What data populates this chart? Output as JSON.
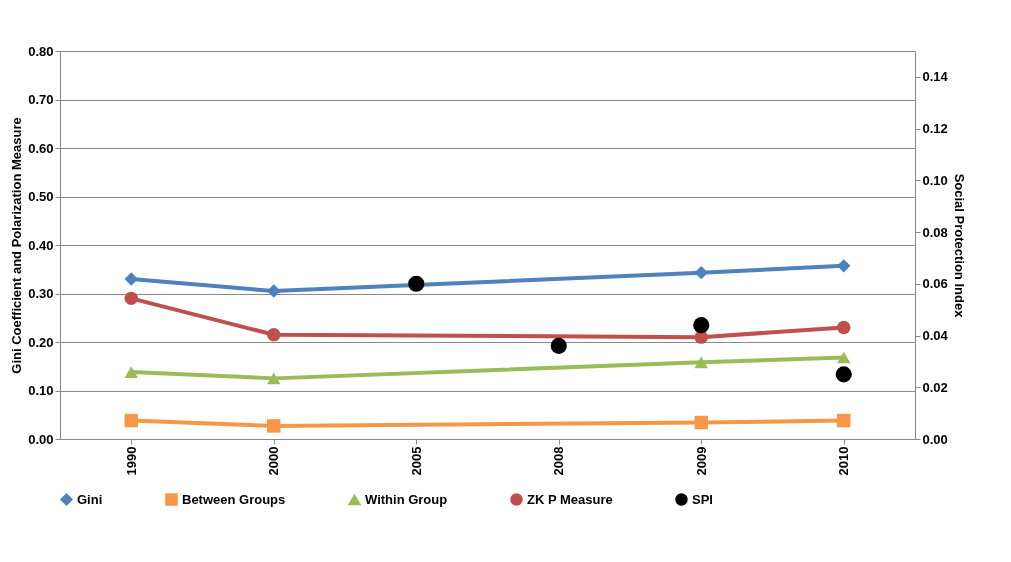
{
  "chart_data": {
    "type": "line",
    "categories": [
      "1990",
      "2000",
      "2005",
      "2008",
      "2009",
      "2010"
    ],
    "ylabel": "Gini Coefficient and Polarization Measure",
    "y2label": "Social Protection Index",
    "ylim": [
      0,
      0.8
    ],
    "yticks": [
      {
        "value": 0,
        "label": "0.00"
      },
      {
        "value": 0.1,
        "label": "0.10"
      },
      {
        "value": 0.2,
        "label": "0.20"
      },
      {
        "value": 0.3,
        "label": "0.30"
      },
      {
        "value": 0.4,
        "label": "0.40"
      },
      {
        "value": 0.5,
        "label": "0.50"
      },
      {
        "value": 0.6,
        "label": "0.60"
      },
      {
        "value": 0.7,
        "label": "0.70"
      },
      {
        "value": 0.8,
        "label": "0.80"
      }
    ],
    "y2lim": [
      0,
      0.15
    ],
    "y2ticks": [
      {
        "value": 0,
        "label": "0.00"
      },
      {
        "value": 0.02,
        "label": "0.02"
      },
      {
        "value": 0.04,
        "label": "0.04"
      },
      {
        "value": 0.06,
        "label": "0.06"
      },
      {
        "value": 0.08,
        "label": "0.08"
      },
      {
        "value": 0.1,
        "label": "0.10"
      },
      {
        "value": 0.12,
        "label": "0.12"
      },
      {
        "value": 0.14,
        "label": "0.14"
      }
    ],
    "grid": "y",
    "legend": "bottom",
    "series": [
      {
        "name": "Gini",
        "color": "#4f81bd",
        "marker": "diamond",
        "values": [
          0.33,
          0.305,
          null,
          null,
          0.343,
          0.357
        ]
      },
      {
        "name": "Between Groups",
        "color": "#f79646",
        "marker": "square",
        "values": [
          0.038,
          0.027,
          null,
          null,
          0.034,
          0.038
        ]
      },
      {
        "name": "Within Group",
        "color": "#9bbb59",
        "marker": "triangle",
        "values": [
          0.138,
          0.125,
          null,
          null,
          0.158,
          0.168
        ]
      },
      {
        "name": "ZK P Measure",
        "color": "#c0504d",
        "marker": "circle",
        "values": [
          0.29,
          0.215,
          null,
          null,
          0.21,
          0.23
        ]
      },
      {
        "name": "SPI",
        "color": "#000000",
        "type": "scatter",
        "axis": "y2",
        "marker": "circle",
        "values": [
          null,
          null,
          0.06,
          0.036,
          0.044,
          0.025
        ]
      }
    ]
  }
}
